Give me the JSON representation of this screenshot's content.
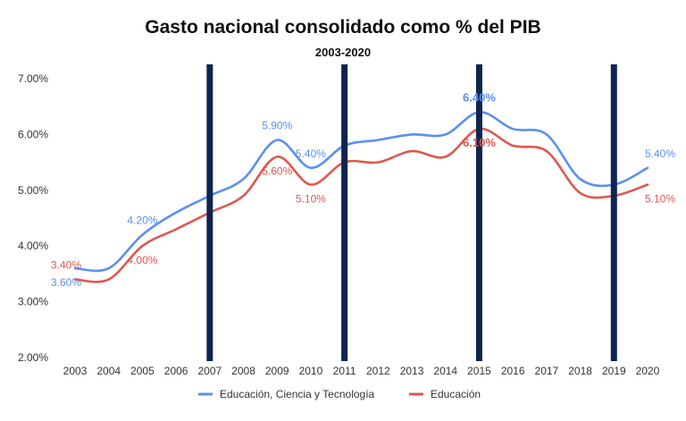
{
  "chart_data": {
    "type": "line",
    "title": "Gasto nacional consolidado como % del PIB",
    "subtitle": "2003-2020",
    "xlabel": "",
    "ylabel": "",
    "categories": [
      "2003",
      "2004",
      "2005",
      "2006",
      "2007",
      "2008",
      "2009",
      "2010",
      "2011",
      "2012",
      "2013",
      "2014",
      "2015",
      "2016",
      "2017",
      "2018",
      "2019",
      "2020"
    ],
    "ylim": [
      2,
      7
    ],
    "yticks": [
      "2.00%",
      "3.00%",
      "4.00%",
      "5.00%",
      "6.00%",
      "7.00%"
    ],
    "series": [
      {
        "name": "Educación, Ciencia y Tecnología",
        "color": "#5b8ff0",
        "values": [
          3.6,
          3.6,
          4.2,
          4.6,
          4.9,
          5.2,
          5.9,
          5.4,
          5.8,
          5.9,
          6.0,
          6.0,
          6.4,
          6.1,
          6.0,
          5.2,
          5.1,
          5.4
        ]
      },
      {
        "name": "Educación",
        "color": "#e0574f",
        "values": [
          3.4,
          3.4,
          4.0,
          4.3,
          4.6,
          4.9,
          5.6,
          5.1,
          5.5,
          5.5,
          5.7,
          5.6,
          6.1,
          5.8,
          5.7,
          4.95,
          4.9,
          5.1
        ]
      }
    ],
    "data_labels": [
      {
        "series": 0,
        "category": "2003",
        "text": "3.60%",
        "pos": "below"
      },
      {
        "series": 1,
        "category": "2003",
        "text": "3.40%",
        "pos": "above"
      },
      {
        "series": 1,
        "category": "2005",
        "text": "4.00%",
        "pos": "below"
      },
      {
        "series": 0,
        "category": "2005",
        "text": "4.20%",
        "pos": "above"
      },
      {
        "series": 0,
        "category": "2009",
        "text": "5.90%",
        "pos": "above"
      },
      {
        "series": 1,
        "category": "2009",
        "text": "5.60%",
        "pos": "below"
      },
      {
        "series": 0,
        "category": "2010",
        "text": "5.40%",
        "pos": "above"
      },
      {
        "series": 1,
        "category": "2010",
        "text": "5.10%",
        "pos": "below"
      },
      {
        "series": 0,
        "category": "2015",
        "text": "6.40%",
        "pos": "above",
        "emphasis": true
      },
      {
        "series": 1,
        "category": "2015",
        "text": "6.10%",
        "pos": "below",
        "emphasis": true
      },
      {
        "series": 0,
        "category": "2020",
        "text": "5.40%",
        "pos": "above"
      },
      {
        "series": 1,
        "category": "2020",
        "text": "5.10%",
        "pos": "below"
      }
    ],
    "markers": {
      "color": "#0d2550",
      "years": [
        "2007",
        "2011",
        "2015",
        "2019"
      ]
    },
    "legend_position": "bottom",
    "grid": false
  }
}
